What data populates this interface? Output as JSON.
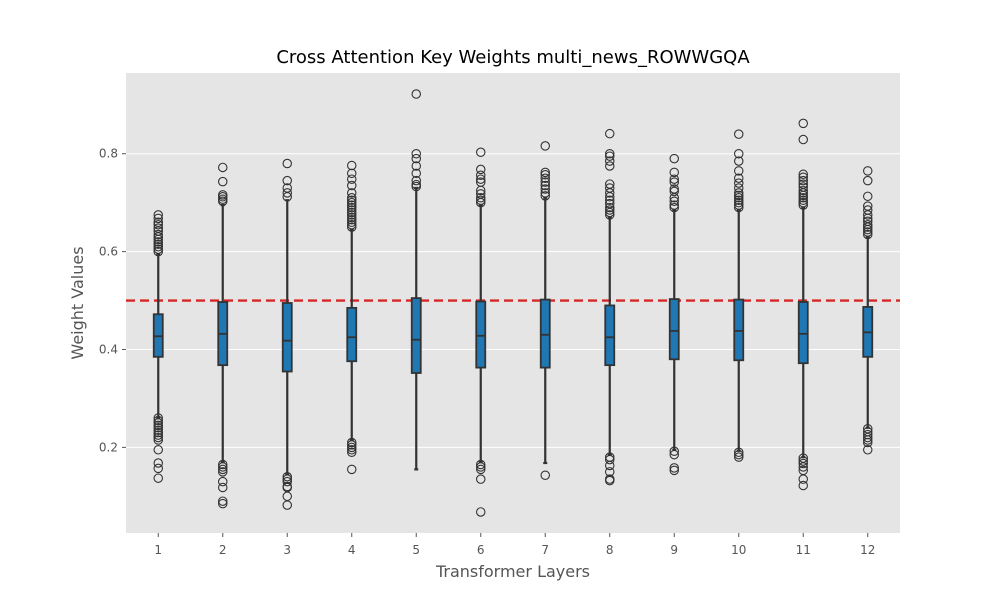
{
  "chart_data": {
    "type": "box",
    "title": "Cross Attention Key Weights multi_news_ROWWGQA",
    "xlabel": "Transformer Layers",
    "ylabel": "Weight Values",
    "categories": [
      "1",
      "2",
      "3",
      "4",
      "5",
      "6",
      "7",
      "8",
      "9",
      "10",
      "11",
      "12"
    ],
    "yticks": [
      0.2,
      0.4,
      0.6,
      0.8
    ],
    "ylim": [
      0.025,
      0.965
    ],
    "grid": true,
    "reference_line": {
      "y": 0.5,
      "style": "dashed",
      "color": "#d62728"
    },
    "box_color": "#1f77b4",
    "boxes": [
      {
        "category": "1",
        "whislo": 0.26,
        "q1": 0.385,
        "med": 0.427,
        "q3": 0.472,
        "whishi": 0.595,
        "fliers": [
          0.675,
          0.668,
          0.66,
          0.655,
          0.648,
          0.642,
          0.635,
          0.63,
          0.625,
          0.62,
          0.615,
          0.61,
          0.605,
          0.6,
          0.26,
          0.255,
          0.25,
          0.245,
          0.24,
          0.235,
          0.23,
          0.225,
          0.22,
          0.215,
          0.195,
          0.168,
          0.157,
          0.137
        ]
      },
      {
        "category": "2",
        "whislo": 0.17,
        "q1": 0.368,
        "med": 0.432,
        "q3": 0.497,
        "whishi": 0.695,
        "fliers": [
          0.772,
          0.743,
          0.716,
          0.712,
          0.707,
          0.703,
          0.165,
          0.16,
          0.155,
          0.15,
          0.13,
          0.118,
          0.09,
          0.085
        ]
      },
      {
        "category": "3",
        "whislo": 0.145,
        "q1": 0.355,
        "med": 0.418,
        "q3": 0.495,
        "whishi": 0.705,
        "fliers": [
          0.78,
          0.745,
          0.73,
          0.72,
          0.712,
          0.14,
          0.135,
          0.13,
          0.12,
          0.118,
          0.1,
          0.082
        ]
      },
      {
        "category": "4",
        "whislo": 0.215,
        "q1": 0.376,
        "med": 0.425,
        "q3": 0.485,
        "whishi": 0.645,
        "fliers": [
          0.776,
          0.76,
          0.748,
          0.735,
          0.72,
          0.71,
          0.705,
          0.7,
          0.695,
          0.69,
          0.685,
          0.68,
          0.675,
          0.67,
          0.665,
          0.66,
          0.655,
          0.65,
          0.21,
          0.205,
          0.2,
          0.195,
          0.19,
          0.155
        ]
      },
      {
        "category": "5",
        "whislo": 0.155,
        "q1": 0.352,
        "med": 0.42,
        "q3": 0.505,
        "whishi": 0.73,
        "fliers": [
          0.922,
          0.8,
          0.79,
          0.775,
          0.76,
          0.745,
          0.737,
          0.733
        ]
      },
      {
        "category": "6",
        "whislo": 0.17,
        "q1": 0.363,
        "med": 0.428,
        "q3": 0.498,
        "whishi": 0.695,
        "fliers": [
          0.803,
          0.768,
          0.756,
          0.748,
          0.742,
          0.725,
          0.718,
          0.71,
          0.705,
          0.7,
          0.165,
          0.16,
          0.155,
          0.135,
          0.068
        ]
      },
      {
        "category": "7",
        "whislo": 0.168,
        "q1": 0.363,
        "med": 0.43,
        "q3": 0.502,
        "whishi": 0.71,
        "fliers": [
          0.816,
          0.762,
          0.757,
          0.75,
          0.742,
          0.735,
          0.728,
          0.72,
          0.714,
          0.143
        ]
      },
      {
        "category": "8",
        "whislo": 0.185,
        "q1": 0.368,
        "med": 0.425,
        "q3": 0.49,
        "whishi": 0.67,
        "fliers": [
          0.841,
          0.8,
          0.795,
          0.785,
          0.775,
          0.738,
          0.73,
          0.72,
          0.712,
          0.705,
          0.698,
          0.69,
          0.685,
          0.68,
          0.675,
          0.18,
          0.175,
          0.163,
          0.15,
          0.135,
          0.132
        ]
      },
      {
        "category": "9",
        "whislo": 0.195,
        "q1": 0.38,
        "med": 0.438,
        "q3": 0.503,
        "whishi": 0.685,
        "fliers": [
          0.79,
          0.762,
          0.748,
          0.742,
          0.728,
          0.723,
          0.71,
          0.703,
          0.695,
          0.69,
          0.192,
          0.185,
          0.158,
          0.153
        ]
      },
      {
        "category": "10",
        "whislo": 0.193,
        "q1": 0.378,
        "med": 0.438,
        "q3": 0.502,
        "whishi": 0.685,
        "fliers": [
          0.84,
          0.8,
          0.785,
          0.765,
          0.75,
          0.74,
          0.73,
          0.72,
          0.715,
          0.71,
          0.705,
          0.7,
          0.695,
          0.69,
          0.19,
          0.185,
          0.18
        ]
      },
      {
        "category": "11",
        "whislo": 0.18,
        "q1": 0.372,
        "med": 0.432,
        "q3": 0.497,
        "whishi": 0.69,
        "fliers": [
          0.862,
          0.829,
          0.758,
          0.752,
          0.745,
          0.738,
          0.732,
          0.725,
          0.72,
          0.715,
          0.71,
          0.705,
          0.7,
          0.695,
          0.178,
          0.172,
          0.167,
          0.16,
          0.153,
          0.135,
          0.122
        ]
      },
      {
        "category": "12",
        "whislo": 0.24,
        "q1": 0.385,
        "med": 0.435,
        "q3": 0.487,
        "whishi": 0.63,
        "fliers": [
          0.765,
          0.745,
          0.713,
          0.693,
          0.685,
          0.675,
          0.668,
          0.662,
          0.655,
          0.65,
          0.645,
          0.64,
          0.635,
          0.238,
          0.232,
          0.226,
          0.22,
          0.215,
          0.21,
          0.195
        ]
      }
    ]
  }
}
